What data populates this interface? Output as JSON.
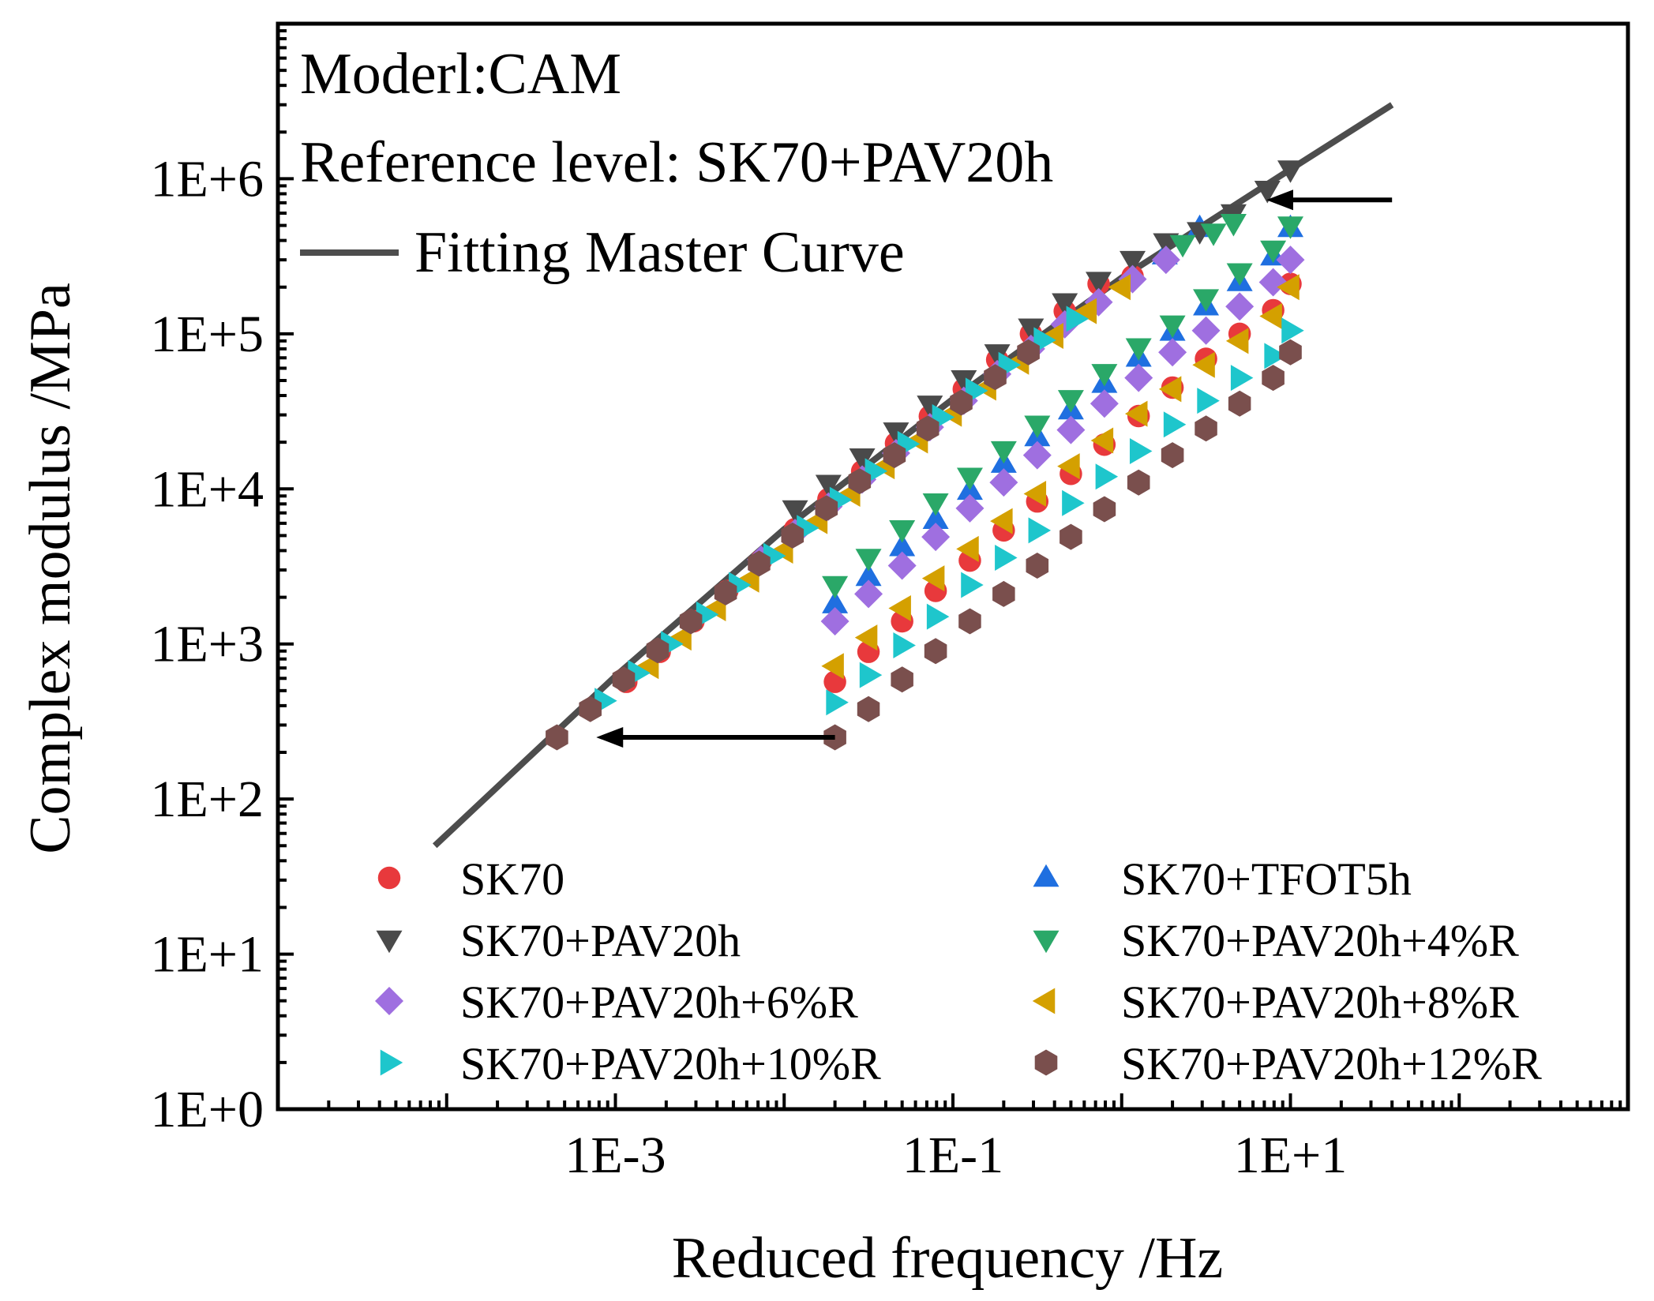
{
  "chart_data": {
    "type": "scatter",
    "title": "",
    "annotations": [
      "Moderl:CAM",
      "Reference level: SK70+PAV20h"
    ],
    "master_curve_label": "Fitting Master Curve",
    "xlabel": "Reduced frequency /Hz",
    "ylabel": "Complex modulus /MPa",
    "xscale": "log",
    "yscale": "log",
    "xlim": [
      1e-05,
      1000
    ],
    "ylim": [
      1,
      10000000
    ],
    "xticks": [
      {
        "value": 0.001,
        "label": "1E-3"
      },
      {
        "value": 0.1,
        "label": "1E-1"
      },
      {
        "value": 10,
        "label": "1E+1"
      }
    ],
    "yticks": [
      {
        "value": 1,
        "label": "1E+0"
      },
      {
        "value": 10,
        "label": "1E+1"
      },
      {
        "value": 100,
        "label": "1E+2"
      },
      {
        "value": 1000,
        "label": "1E+3"
      },
      {
        "value": 10000,
        "label": "1E+4"
      },
      {
        "value": 100000,
        "label": "1E+5"
      },
      {
        "value": 1000000,
        "label": "1E+6"
      }
    ],
    "master_curve": {
      "name": "Fitting Master Curve",
      "color": "#4d4d4d",
      "x": [
        8.5e-05,
        0.001,
        0.01,
        0.1,
        1,
        10,
        40
      ],
      "y": [
        50,
        620,
        5500,
        38000,
        230000,
        1150000,
        3000000
      ]
    },
    "arrows": [
      {
        "from": [
          0.02,
          250
        ],
        "to": [
          0.00077,
          250
        ]
      },
      {
        "from": [
          40,
          730000
        ],
        "to": [
          7.2,
          730000
        ]
      }
    ],
    "legend_position": "bottom",
    "series": [
      {
        "name": "SK70",
        "marker": "circle",
        "color": "#e8393c",
        "x": [
          0.00116,
          0.00183,
          0.0029,
          0.0046,
          0.0073,
          0.0116,
          0.0183,
          0.029,
          0.046,
          0.073,
          0.116,
          0.183,
          0.29,
          0.46,
          0.73,
          1.16,
          0.02,
          0.0316,
          0.05,
          0.079,
          0.126,
          0.2,
          0.316,
          0.5,
          0.79,
          1.26,
          2,
          3.16,
          5,
          7.9,
          10
        ],
        "y": [
          570,
          890,
          1400,
          2200,
          3450,
          5500,
          8600,
          13000,
          19700,
          29400,
          44000,
          68000,
          100000,
          140000,
          210000,
          235000,
          570,
          890,
          1400,
          2200,
          3450,
          5400,
          8300,
          12500,
          19300,
          29500,
          45000,
          69000,
          100000,
          142000,
          210000
        ]
      },
      {
        "name": "SK70+TFOT5h",
        "marker": "triangle-up",
        "color": "#1f6fe0",
        "x": [
          0.02,
          0.0316,
          0.05,
          0.079,
          0.126,
          0.2,
          0.316,
          0.5,
          0.79,
          1.26,
          2,
          3.16,
          5,
          7.9,
          10,
          1.8,
          2.9
        ],
        "y": [
          1800,
          2700,
          4200,
          6300,
          9700,
          14500,
          21500,
          32000,
          47500,
          70000,
          103000,
          150000,
          215000,
          315000,
          480000,
          320000,
          480000
        ]
      },
      {
        "name": "SK70+PAV20h",
        "marker": "triangle-down",
        "color": "#4a4a4a",
        "x": [
          0.0116,
          0.0183,
          0.029,
          0.046,
          0.073,
          0.116,
          0.183,
          0.29,
          0.46,
          0.73,
          1.16,
          1.83,
          2.9,
          4.6,
          7.3,
          10
        ],
        "y": [
          7400,
          10800,
          16000,
          23500,
          35000,
          51000,
          75000,
          110000,
          160000,
          220000,
          300000,
          390000,
          460000,
          600000,
          850000,
          1150000
        ]
      },
      {
        "name": "SK70+PAV20h+4%R",
        "marker": "triangle-down",
        "color": "#2aa868",
        "x": [
          0.02,
          0.0316,
          0.05,
          0.079,
          0.126,
          0.2,
          0.316,
          0.5,
          0.79,
          1.26,
          2,
          3.16,
          5,
          7.9,
          10,
          2.3,
          3.5,
          4.6
        ],
        "y": [
          2400,
          3600,
          5500,
          8200,
          12000,
          17800,
          26000,
          38000,
          56000,
          82000,
          115000,
          170000,
          250000,
          350000,
          500000,
          380000,
          450000,
          520000
        ]
      },
      {
        "name": "SK70+PAV20h+6%R",
        "marker": "diamond",
        "color": "#9f6fe0",
        "x": [
          0.0073,
          0.0116,
          0.0183,
          0.029,
          0.046,
          0.073,
          0.116,
          0.183,
          0.29,
          0.46,
          0.73,
          1.16,
          1.83,
          0.02,
          0.0316,
          0.05,
          0.079,
          0.126,
          0.2,
          0.316,
          0.5,
          0.79,
          1.26,
          2,
          3.16,
          5,
          7.9,
          10
        ],
        "y": [
          3500,
          5200,
          7700,
          11500,
          17000,
          25000,
          37000,
          55000,
          80000,
          115000,
          160000,
          225000,
          300000,
          1400,
          2100,
          3200,
          4900,
          7500,
          11000,
          16500,
          24000,
          35500,
          52000,
          76000,
          105000,
          150000,
          215000,
          300000
        ]
      },
      {
        "name": "SK70+PAV20h+8%R",
        "marker": "triangle-left",
        "color": "#d4a000",
        "x": [
          0.0016,
          0.0025,
          0.004,
          0.0063,
          0.01,
          0.016,
          0.025,
          0.04,
          0.063,
          0.1,
          0.16,
          0.25,
          0.4,
          0.63,
          1,
          0.02,
          0.0316,
          0.05,
          0.079,
          0.126,
          0.2,
          0.316,
          0.5,
          0.79,
          1.26,
          2,
          3.16,
          5,
          7.9,
          10
        ],
        "y": [
          720,
          1100,
          1700,
          2600,
          4000,
          6200,
          9300,
          14000,
          20500,
          30500,
          45000,
          66000,
          97000,
          140000,
          200000,
          720,
          1100,
          1700,
          2650,
          4100,
          6200,
          9300,
          14000,
          20500,
          30500,
          44000,
          63000,
          90000,
          130000,
          200000
        ]
      },
      {
        "name": "SK70+PAV20h+10%R",
        "marker": "triangle-right",
        "color": "#1ec6cc",
        "x": [
          0.00085,
          0.00134,
          0.0021,
          0.0034,
          0.0053,
          0.0085,
          0.0134,
          0.021,
          0.034,
          0.053,
          0.085,
          0.134,
          0.21,
          0.34,
          0.53,
          0.02,
          0.0316,
          0.05,
          0.079,
          0.126,
          0.2,
          0.316,
          0.5,
          0.79,
          1.26,
          2,
          3.16,
          5,
          7.9,
          10
        ],
        "y": [
          430,
          650,
          1000,
          1550,
          2400,
          3700,
          5600,
          8500,
          13000,
          19500,
          29000,
          43000,
          63000,
          91000,
          125000,
          420,
          630,
          980,
          1500,
          2400,
          3600,
          5400,
          8100,
          12000,
          17500,
          26000,
          37000,
          52000,
          72000,
          105000
        ]
      },
      {
        "name": "SK70+PAV20h+12%R",
        "marker": "hexagon",
        "color": "#7a4f4d",
        "x": [
          0.00045,
          0.00071,
          0.00112,
          0.00178,
          0.0028,
          0.0045,
          0.0071,
          0.0112,
          0.0178,
          0.028,
          0.045,
          0.071,
          0.112,
          0.178,
          0.28,
          0.02,
          0.0316,
          0.05,
          0.079,
          0.126,
          0.2,
          0.316,
          0.5,
          0.79,
          1.26,
          2,
          3.16,
          5,
          7.9,
          10
        ],
        "y": [
          250,
          380,
          590,
          910,
          1400,
          2150,
          3300,
          5000,
          7500,
          11200,
          16500,
          24500,
          36000,
          52500,
          76000,
          250,
          380,
          590,
          900,
          1400,
          2100,
          3200,
          4900,
          7400,
          11000,
          16500,
          24500,
          35500,
          52000,
          76000
        ]
      }
    ]
  }
}
